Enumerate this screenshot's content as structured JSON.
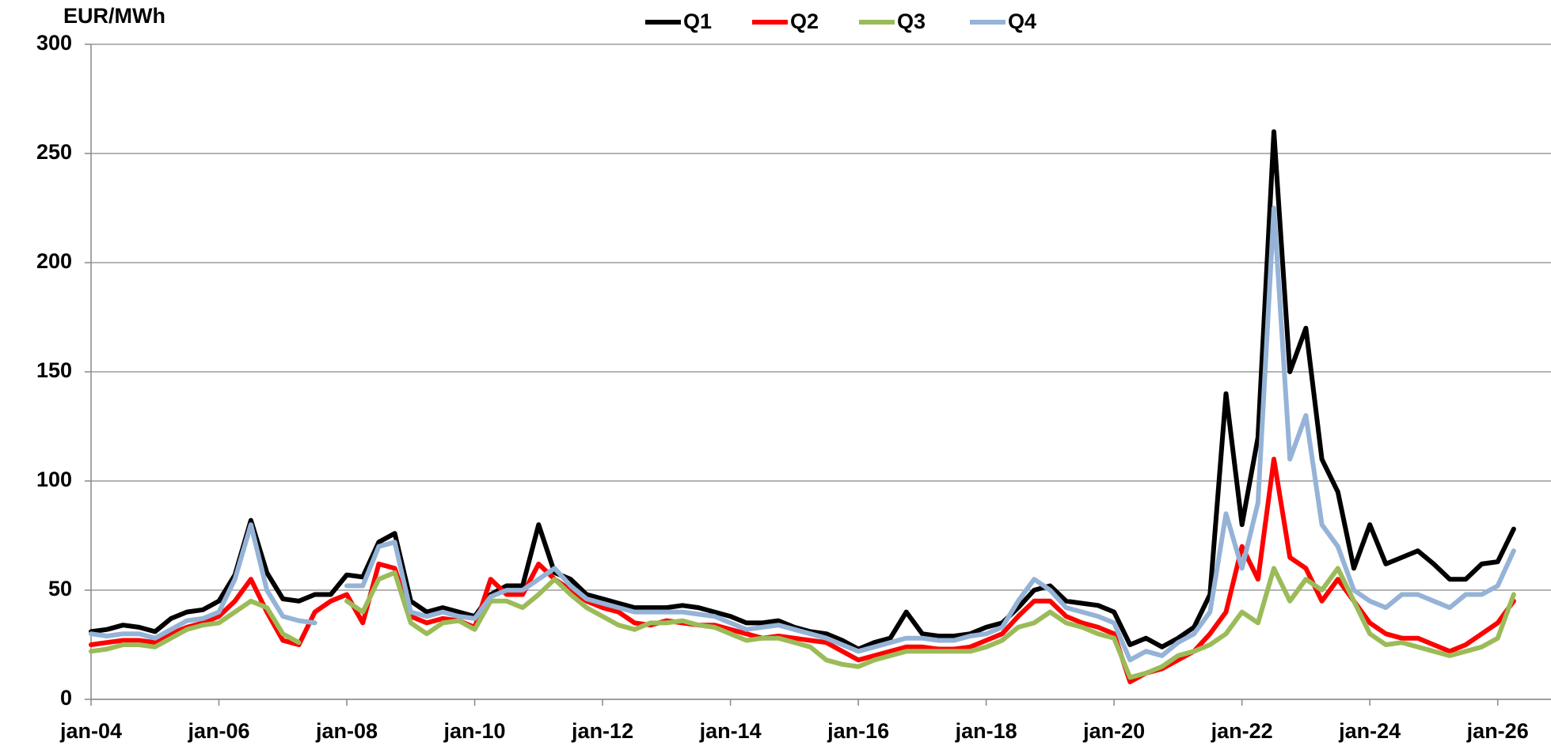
{
  "chart_data": {
    "type": "line",
    "y_label": "EUR/MWh",
    "x": [
      "2004-01",
      "2004-04",
      "2004-07",
      "2004-10",
      "2005-01",
      "2005-04",
      "2005-07",
      "2005-10",
      "2006-01",
      "2006-04",
      "2006-07",
      "2006-10",
      "2007-01",
      "2007-04",
      "2007-07",
      "2007-10",
      "2008-01",
      "2008-04",
      "2008-07",
      "2008-10",
      "2009-01",
      "2009-04",
      "2009-07",
      "2009-10",
      "2010-01",
      "2010-04",
      "2010-07",
      "2010-10",
      "2011-01",
      "2011-04",
      "2011-07",
      "2011-10",
      "2012-01",
      "2012-04",
      "2012-07",
      "2012-10",
      "2013-01",
      "2013-04",
      "2013-07",
      "2013-10",
      "2014-01",
      "2014-04",
      "2014-07",
      "2014-10",
      "2015-01",
      "2015-04",
      "2015-07",
      "2015-10",
      "2016-01",
      "2016-04",
      "2016-07",
      "2016-10",
      "2017-01",
      "2017-04",
      "2017-07",
      "2017-10",
      "2018-01",
      "2018-04",
      "2018-07",
      "2018-10",
      "2019-01",
      "2019-04",
      "2019-07",
      "2019-10",
      "2020-01",
      "2020-04",
      "2020-07",
      "2020-10",
      "2021-01",
      "2021-04",
      "2021-07",
      "2021-10",
      "2022-01",
      "2022-04",
      "2022-07",
      "2022-10",
      "2023-01",
      "2023-04",
      "2023-07",
      "2023-10",
      "2024-01",
      "2024-04",
      "2024-07",
      "2024-10",
      "2025-01",
      "2025-04",
      "2025-07",
      "2025-10",
      "2026-01",
      "2026-04"
    ],
    "series": [
      {
        "name": "Q1",
        "color": "#000000",
        "values": [
          31,
          32,
          34,
          33,
          31,
          37,
          40,
          41,
          45,
          57,
          82,
          58,
          46,
          45,
          48,
          48,
          57,
          56,
          72,
          76,
          45,
          40,
          42,
          40,
          38,
          48,
          52,
          52,
          80,
          58,
          55,
          48,
          46,
          44,
          42,
          42,
          42,
          43,
          42,
          40,
          38,
          35,
          35,
          36,
          33,
          31,
          30,
          27,
          23,
          26,
          28,
          40,
          30,
          29,
          29,
          30,
          33,
          35,
          42,
          50,
          52,
          45,
          44,
          43,
          40,
          25,
          28,
          24,
          28,
          33,
          48,
          140,
          80,
          120,
          260,
          150,
          170,
          110,
          95,
          60,
          80,
          62,
          65,
          68,
          62,
          55,
          55,
          62,
          63,
          78
        ]
      },
      {
        "name": "Q2",
        "color": "#ff0000",
        "values": [
          25,
          26,
          27,
          27,
          26,
          30,
          33,
          35,
          38,
          45,
          55,
          40,
          27,
          25,
          40,
          45,
          48,
          35,
          62,
          60,
          38,
          35,
          37,
          36,
          33,
          55,
          48,
          48,
          62,
          55,
          50,
          45,
          42,
          40,
          35,
          34,
          36,
          35,
          34,
          34,
          32,
          30,
          28,
          29,
          28,
          27,
          26,
          22,
          18,
          20,
          22,
          24,
          24,
          23,
          23,
          24,
          27,
          30,
          38,
          45,
          45,
          38,
          35,
          33,
          30,
          8,
          12,
          14,
          18,
          22,
          30,
          40,
          70,
          55,
          110,
          65,
          60,
          45,
          55,
          45,
          35,
          30,
          28,
          28,
          25,
          22,
          25,
          30,
          35,
          45
        ]
      },
      {
        "name": "Q3",
        "color": "#9bbb59",
        "values": [
          22,
          23,
          25,
          25,
          24,
          28,
          32,
          34,
          35,
          40,
          45,
          42,
          30,
          26,
          null,
          null,
          45,
          40,
          55,
          58,
          35,
          30,
          35,
          36,
          32,
          45,
          45,
          42,
          48,
          55,
          48,
          42,
          38,
          34,
          32,
          35,
          35,
          36,
          34,
          33,
          30,
          27,
          28,
          28,
          26,
          24,
          18,
          16,
          15,
          18,
          20,
          22,
          22,
          22,
          22,
          22,
          24,
          27,
          33,
          35,
          40,
          35,
          33,
          30,
          28,
          10,
          12,
          15,
          20,
          22,
          25,
          30,
          40,
          35,
          60,
          45,
          55,
          50,
          60,
          45,
          30,
          25,
          26,
          24,
          22,
          20,
          22,
          24,
          28,
          48
        ]
      },
      {
        "name": "Q4",
        "color": "#95b3d7",
        "values": [
          30,
          29,
          30,
          30,
          28,
          32,
          36,
          37,
          40,
          55,
          80,
          50,
          38,
          36,
          35,
          null,
          52,
          52,
          70,
          72,
          40,
          38,
          40,
          38,
          37,
          47,
          50,
          50,
          55,
          60,
          52,
          46,
          44,
          42,
          40,
          40,
          40,
          40,
          39,
          38,
          35,
          32,
          33,
          34,
          32,
          30,
          28,
          25,
          22,
          24,
          26,
          28,
          28,
          27,
          27,
          29,
          30,
          33,
          45,
          55,
          50,
          42,
          40,
          38,
          35,
          18,
          22,
          20,
          26,
          30,
          40,
          85,
          60,
          90,
          225,
          110,
          130,
          80,
          70,
          50,
          45,
          42,
          48,
          48,
          45,
          42,
          48,
          48,
          52,
          68
        ]
      }
    ],
    "xlim": [
      "2004-01",
      "2026-11"
    ],
    "xticks": [
      {
        "value": "2004-01",
        "label": "jan-04"
      },
      {
        "value": "2006-01",
        "label": "jan-06"
      },
      {
        "value": "2008-01",
        "label": "jan-08"
      },
      {
        "value": "2010-01",
        "label": "jan-10"
      },
      {
        "value": "2012-01",
        "label": "jan-12"
      },
      {
        "value": "2014-01",
        "label": "jan-14"
      },
      {
        "value": "2016-01",
        "label": "jan-16"
      },
      {
        "value": "2018-01",
        "label": "jan-18"
      },
      {
        "value": "2020-01",
        "label": "jan-20"
      },
      {
        "value": "2022-01",
        "label": "jan-22"
      },
      {
        "value": "2024-01",
        "label": "jan-24"
      },
      {
        "value": "2026-01",
        "label": "jan-26"
      }
    ],
    "ylim": [
      0,
      300
    ],
    "yticks": [
      0,
      50,
      100,
      150,
      200,
      250,
      300
    ],
    "grid": true,
    "legend": "top"
  }
}
